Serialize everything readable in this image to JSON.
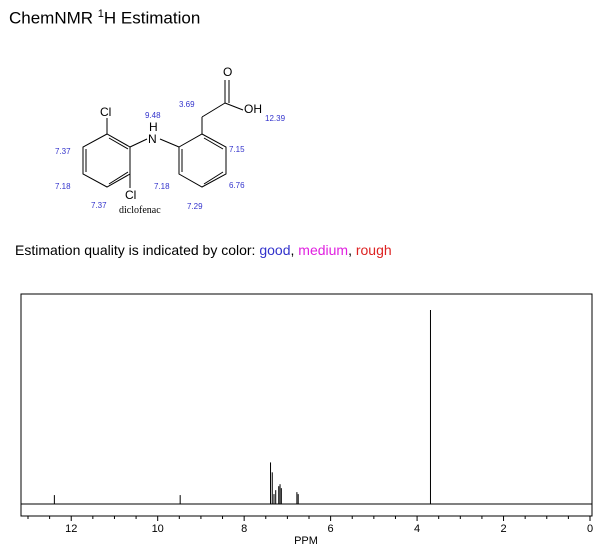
{
  "header": {
    "title_prefix": "ChemNMR ",
    "title_sup": "1",
    "title_suffix": "H Estimation"
  },
  "molecule": {
    "name": "diclofenac",
    "atoms": {
      "cl_top": "Cl",
      "cl_bottom": "Cl",
      "nh_h": "H",
      "nh_n": "N",
      "oxygen": "O",
      "oh": "OH"
    },
    "shifts": {
      "nh": "9.48",
      "ch2": "3.69",
      "cooh": "12.39",
      "ring_a_top": "7.37",
      "ring_a_mid": "7.18",
      "ring_a_bottom": "7.37",
      "ring_b_ortho": "7.15",
      "ring_b_meta": "6.76",
      "ring_b_para": "7.29",
      "ring_b_near_n": "7.18"
    },
    "shift_color": "#3333cc"
  },
  "quality": {
    "prefix": "Estimation quality is indicated by color: ",
    "good": "good",
    "sep1": ", ",
    "medium": "medium",
    "sep2": ", ",
    "rough": "rough",
    "colors": {
      "good": "#3333cc",
      "medium": "#e020e0",
      "rough": "#dd2222"
    }
  },
  "chart_data": {
    "type": "line",
    "title": "",
    "xlabel": "PPM",
    "ylabel": "",
    "xlim": [
      13,
      0
    ],
    "x_reversed": true,
    "ylim": [
      0,
      1
    ],
    "grid": false,
    "xticks": [
      12,
      10,
      8,
      6,
      4,
      2,
      0
    ],
    "xtick_labels": [
      "12",
      "10",
      "8",
      "6",
      "4",
      "2",
      "0"
    ],
    "minor_tick_step": 0.5,
    "peaks": [
      {
        "ppm": 12.39,
        "intensity": 0.045
      },
      {
        "ppm": 9.48,
        "intensity": 0.045
      },
      {
        "ppm": 7.39,
        "intensity": 0.21
      },
      {
        "ppm": 7.35,
        "intensity": 0.16
      },
      {
        "ppm": 7.31,
        "intensity": 0.05
      },
      {
        "ppm": 7.27,
        "intensity": 0.07
      },
      {
        "ppm": 7.2,
        "intensity": 0.09
      },
      {
        "ppm": 7.17,
        "intensity": 0.1
      },
      {
        "ppm": 7.14,
        "intensity": 0.08
      },
      {
        "ppm": 6.78,
        "intensity": 0.06
      },
      {
        "ppm": 6.75,
        "intensity": 0.05
      },
      {
        "ppm": 3.69,
        "intensity": 0.98
      }
    ]
  }
}
